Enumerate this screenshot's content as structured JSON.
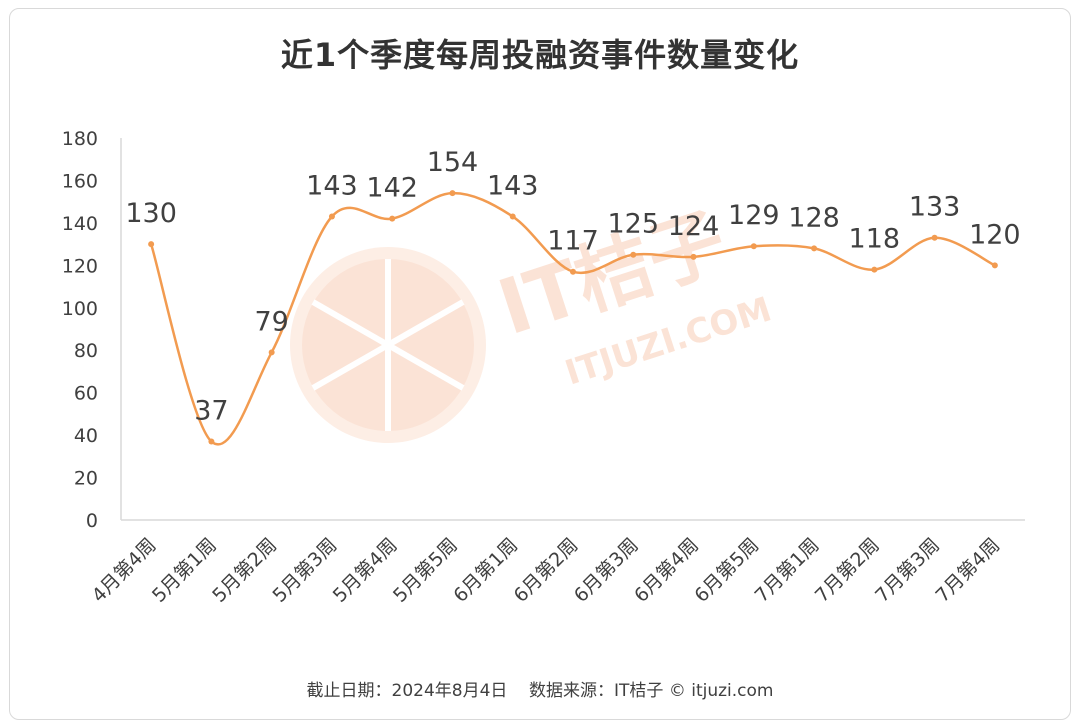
{
  "title": "近1个季度每周投融资事件数量变化",
  "footer": "截止日期：2024年8月4日    数据来源：IT桔子 © itjuzi.com",
  "watermark": {
    "main": "IT桔子",
    "sub": "ITJUZI.COM"
  },
  "colors": {
    "line": "#F29B50",
    "watermark": "#FBE3D6",
    "axis": "#D9D9D9",
    "text": "#404040"
  },
  "chart_data": {
    "type": "line",
    "title": "近1个季度每周投融资事件数量变化",
    "categories": [
      "4月第4周",
      "5月第1周",
      "5月第2周",
      "5月第3周",
      "5月第4周",
      "5月第5周",
      "6月第1周",
      "6月第2周",
      "6月第3周",
      "6月第4周",
      "6月第5周",
      "7月第1周",
      "7月第2周",
      "7月第3周",
      "7月第4周"
    ],
    "values": [
      130,
      37,
      79,
      143,
      142,
      154,
      143,
      117,
      125,
      124,
      129,
      128,
      118,
      133,
      120
    ],
    "yticks": [
      0,
      20,
      40,
      60,
      80,
      100,
      120,
      140,
      160,
      180
    ],
    "ylim": [
      0,
      180
    ],
    "smooth": true,
    "data_labels": true,
    "grid": false,
    "legend": "none"
  }
}
